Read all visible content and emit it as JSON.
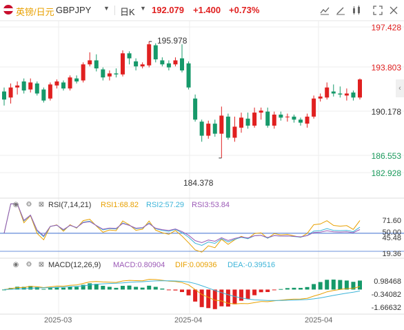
{
  "header": {
    "pair_cn": "英镑/日元",
    "pair_en": "GBPJPY",
    "caret": "▼",
    "period": "日K",
    "price": "192.079",
    "change": "+1.400",
    "change_pct": "+0.73%",
    "colors": {
      "up": "#e02020",
      "accent": "#e8a000"
    }
  },
  "toolbar": {
    "icons": [
      "chart-settings-icon",
      "draw-icon",
      "indicator-icon",
      "expand-icon",
      "more-icon"
    ]
  },
  "main_axis": {
    "labels": [
      "197.428",
      "193.803",
      "190.178",
      "186.553",
      "182.928"
    ]
  },
  "annotations": {
    "high": "195.978",
    "low": "184.378"
  },
  "rsi": {
    "title": "RSI(7,14,21)",
    "rsi1": "RSI1:68.82",
    "rsi2": "RSI2:57.29",
    "rsi3": "RSI3:53.84",
    "axis": [
      "71.60",
      "50.00",
      "45.48",
      "19.36"
    ]
  },
  "macd": {
    "title": "MACD(12,26,9)",
    "macd": "MACD:0.80904",
    "dif": "DIF:0.00936",
    "dea": "DEA:-0.39516",
    "axis": [
      "0.98468",
      "-0.34082",
      "-1.66632"
    ]
  },
  "x_axis": {
    "labels": [
      "2025-03",
      "2025-04",
      "2025-04"
    ]
  },
  "chart_data": {
    "type": "candlestick",
    "ylim": [
      182.928,
      197.428
    ],
    "candles": [
      [
        191.0,
        190.2,
        191.4,
        189.6
      ],
      [
        190.4,
        191.4,
        191.8,
        189.8
      ],
      [
        191.4,
        191.6,
        192.0,
        190.7
      ],
      [
        192.0,
        191.1,
        192.3,
        190.8
      ],
      [
        191.2,
        191.9,
        192.3,
        190.9
      ],
      [
        191.8,
        190.8,
        192.0,
        190.6
      ],
      [
        191.2,
        190.1,
        191.4,
        189.9
      ],
      [
        190.3,
        191.7,
        191.9,
        190.1
      ],
      [
        191.6,
        192.0,
        192.2,
        191.3
      ],
      [
        191.9,
        191.3,
        192.1,
        191.1
      ],
      [
        191.3,
        192.4,
        192.6,
        191.1
      ],
      [
        192.3,
        192.0,
        192.6,
        191.8
      ],
      [
        192.1,
        193.7,
        193.9,
        191.9
      ],
      [
        193.7,
        194.1,
        194.9,
        193.5
      ],
      [
        194.1,
        193.3,
        194.7,
        193.0
      ],
      [
        193.2,
        192.4,
        193.4,
        192.1
      ],
      [
        192.5,
        192.8,
        193.1,
        192.1
      ],
      [
        192.8,
        192.7,
        193.3,
        192.4
      ],
      [
        192.7,
        194.8,
        195.1,
        192.5
      ],
      [
        194.8,
        194.3,
        195.0,
        193.7
      ],
      [
        194.0,
        193.5,
        194.3,
        193.1
      ],
      [
        193.5,
        193.7,
        193.9,
        193.3
      ],
      [
        193.6,
        195.7,
        195.98,
        193.4
      ],
      [
        195.6,
        194.2,
        195.8,
        193.9
      ],
      [
        194.1,
        193.7,
        194.4,
        193.5
      ],
      [
        193.8,
        193.4,
        194.1,
        193.1
      ],
      [
        193.7,
        194.1,
        194.4,
        193.5
      ],
      [
        194.3,
        193.1,
        195.7,
        192.9
      ],
      [
        193.8,
        191.4,
        194.0,
        191.2
      ],
      [
        190.3,
        188.2,
        190.7,
        188.0
      ],
      [
        188.0,
        186.6,
        188.2,
        186.0
      ],
      [
        186.6,
        187.8,
        188.1,
        186.3
      ],
      [
        187.8,
        186.8,
        188.2,
        186.5
      ],
      [
        186.8,
        188.6,
        189.5,
        184.38
      ],
      [
        188.5,
        186.4,
        188.8,
        186.2
      ],
      [
        186.4,
        187.5,
        188.5,
        186.0
      ],
      [
        187.4,
        188.4,
        188.9,
        186.9
      ],
      [
        188.3,
        187.6,
        188.9,
        187.3
      ],
      [
        187.6,
        188.9,
        189.4,
        187.4
      ],
      [
        188.9,
        189.1,
        189.4,
        188.2
      ],
      [
        189.0,
        187.6,
        189.4,
        187.4
      ],
      [
        187.6,
        188.7,
        189.0,
        187.3
      ],
      [
        188.7,
        188.4,
        189.0,
        188.1
      ],
      [
        188.5,
        188.5,
        188.8,
        188.0
      ],
      [
        188.5,
        188.2,
        188.7,
        187.9
      ],
      [
        188.2,
        187.9,
        188.4,
        187.6
      ],
      [
        187.8,
        188.5,
        188.8,
        187.4
      ],
      [
        188.5,
        190.3,
        190.6,
        188.3
      ],
      [
        190.3,
        190.5,
        190.8,
        190.0
      ],
      [
        190.4,
        191.4,
        191.9,
        190.2
      ],
      [
        191.0,
        190.8,
        191.7,
        190.5
      ],
      [
        190.8,
        190.7,
        191.5,
        190.4
      ],
      [
        190.6,
        190.8,
        191.3,
        190.1
      ],
      [
        190.9,
        190.4,
        191.1,
        190.1
      ],
      [
        190.4,
        192.2,
        192.3,
        190.2
      ]
    ]
  }
}
